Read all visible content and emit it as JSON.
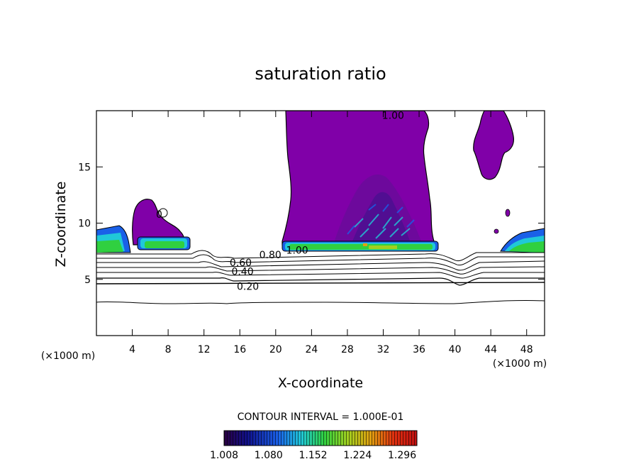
{
  "chart_data": {
    "type": "heatmap",
    "title": "saturation ratio",
    "xlabel": "X-coordinate",
    "ylabel": "Z-coordinate",
    "x_unit_left": "(×1000 m)",
    "x_unit_right": "(×1000 m)",
    "xlim": [
      0,
      50
    ],
    "ylim": [
      0,
      20
    ],
    "x_ticks": [
      4,
      8,
      12,
      16,
      20,
      24,
      28,
      32,
      36,
      40,
      44,
      48
    ],
    "x_tick_labels": [
      "4",
      "8",
      "12",
      "16",
      "20",
      "24",
      "28",
      "32",
      "36",
      "40",
      "44",
      "48"
    ],
    "y_ticks": [
      5,
      10,
      15
    ],
    "y_tick_labels": [
      "5",
      "10",
      "15"
    ],
    "contour_interval_label": "CONTOUR INTERVAL = 1.000E-01",
    "contour_labels": [
      {
        "text": "1.00",
        "x": 33.1,
        "z": 19.6
      },
      {
        "text": "1.00",
        "x": 22.4,
        "z": 7.6
      },
      {
        "text": "0.80",
        "x": 19.4,
        "z": 7.2
      },
      {
        "text": "0.60",
        "x": 16.1,
        "z": 6.5
      },
      {
        "text": "0.40",
        "x": 16.3,
        "z": 5.7
      },
      {
        "text": "0.20",
        "x": 16.9,
        "z": 4.4
      },
      {
        "text": "0",
        "x": 7.0,
        "z": 10.8
      }
    ],
    "colorbar": {
      "tick_labels": [
        "1.008",
        "1.080",
        "1.152",
        "1.224",
        "1.296"
      ],
      "min": 1.008,
      "max": 1.32
    }
  }
}
